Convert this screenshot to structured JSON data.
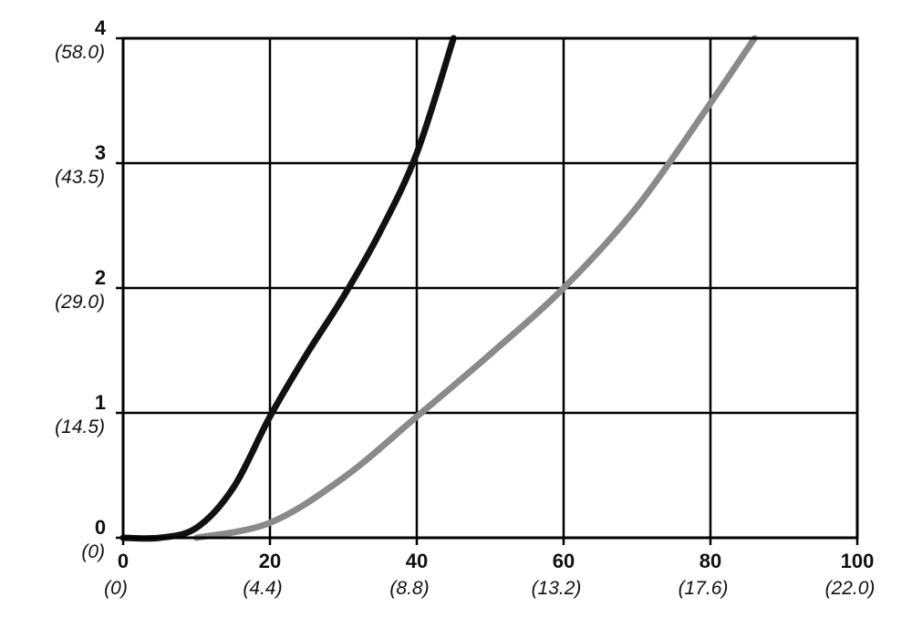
{
  "chart_data": {
    "type": "line",
    "title": "",
    "xlabel": "",
    "ylabel": "",
    "xlim": [
      0,
      100
    ],
    "ylim": [
      0,
      4
    ],
    "grid": true,
    "x_ticks": [
      {
        "value": 0,
        "label": "0",
        "sublabel": "(0)"
      },
      {
        "value": 20,
        "label": "20",
        "sublabel": "(4.4)"
      },
      {
        "value": 40,
        "label": "40",
        "sublabel": "(8.8)"
      },
      {
        "value": 60,
        "label": "60",
        "sublabel": "(13.2)"
      },
      {
        "value": 80,
        "label": "80",
        "sublabel": "(17.6)"
      },
      {
        "value": 100,
        "label": "100",
        "sublabel": "(22.0)"
      }
    ],
    "y_ticks": [
      {
        "value": 0,
        "label": "0",
        "sublabel": "(0)"
      },
      {
        "value": 1,
        "label": "1",
        "sublabel": "(14.5)"
      },
      {
        "value": 2,
        "label": "2",
        "sublabel": "(29.0)"
      },
      {
        "value": 3,
        "label": "3",
        "sublabel": "(43.5)"
      },
      {
        "value": 4,
        "label": "4",
        "sublabel": "(58.0)"
      }
    ],
    "series": [
      {
        "color": "#111111",
        "x": [
          0,
          5,
          10,
          15,
          20,
          25,
          30,
          35,
          40,
          45
        ],
        "y": [
          0,
          0,
          0.08,
          0.4,
          0.97,
          1.47,
          1.93,
          2.45,
          3.08,
          4.0
        ]
      },
      {
        "color": "#8a8a8a",
        "x": [
          10,
          20,
          30,
          40,
          50,
          60,
          70,
          80,
          86
        ],
        "y": [
          0,
          0.12,
          0.48,
          0.97,
          1.47,
          2.0,
          2.65,
          3.48,
          4.0
        ]
      }
    ]
  }
}
